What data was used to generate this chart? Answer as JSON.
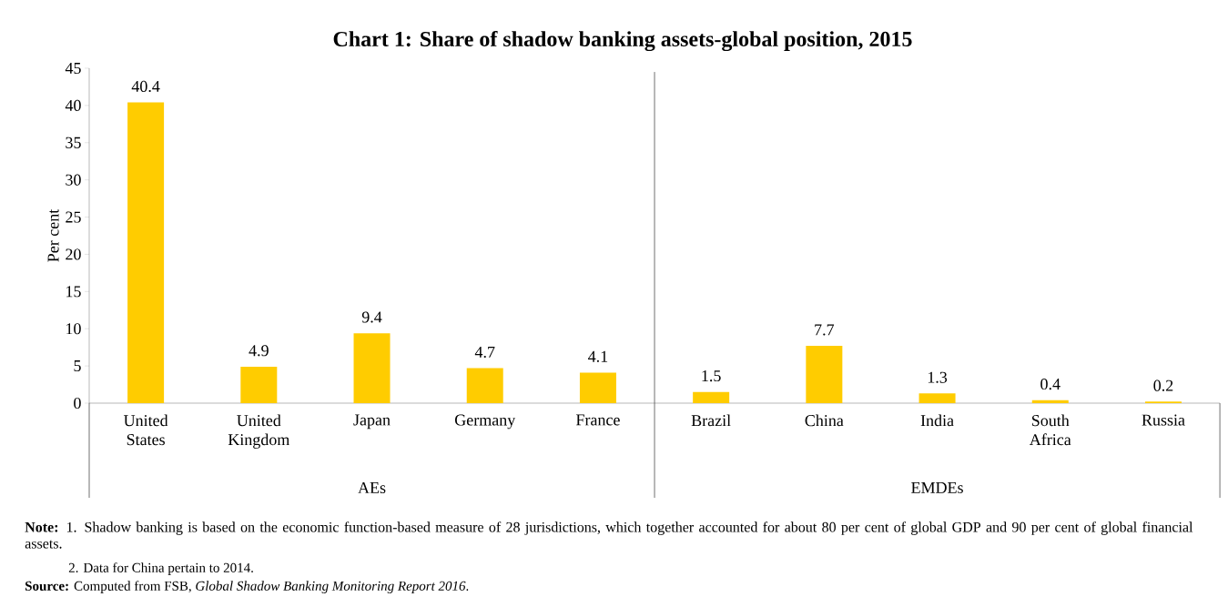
{
  "chart_data": {
    "type": "bar",
    "title": "Chart 1: Share of shadow banking assets-global position, 2015",
    "ylabel": "Per cent",
    "categories": [
      "United States",
      "United Kingdom",
      "Japan",
      "Germany",
      "France",
      "Brazil",
      "China",
      "India",
      "South Africa",
      "Russia"
    ],
    "values": [
      40.4,
      4.9,
      9.4,
      4.7,
      4.1,
      1.5,
      7.7,
      1.3,
      0.4,
      0.2
    ],
    "color": "#ffcc00",
    "data_labels": true,
    "ylim": [
      0,
      45
    ],
    "yticks": [
      0,
      5,
      10,
      15,
      20,
      25,
      30,
      35,
      40,
      45
    ],
    "grid": false,
    "annotations": [
      "AEs",
      "EMDEs",
      "**Note:** 1. Shadow banking is based on the economic function-based measure of 28 jurisdictions, which together accounted for about 80 per cent of global GDP and 90 per cent of global financial assets.",
      "2. Data for China pertain to 2014.",
      "**Source:** Computed from FSB, *Global Shadow Banking Monitoring Report 2016*."
    ]
  }
}
